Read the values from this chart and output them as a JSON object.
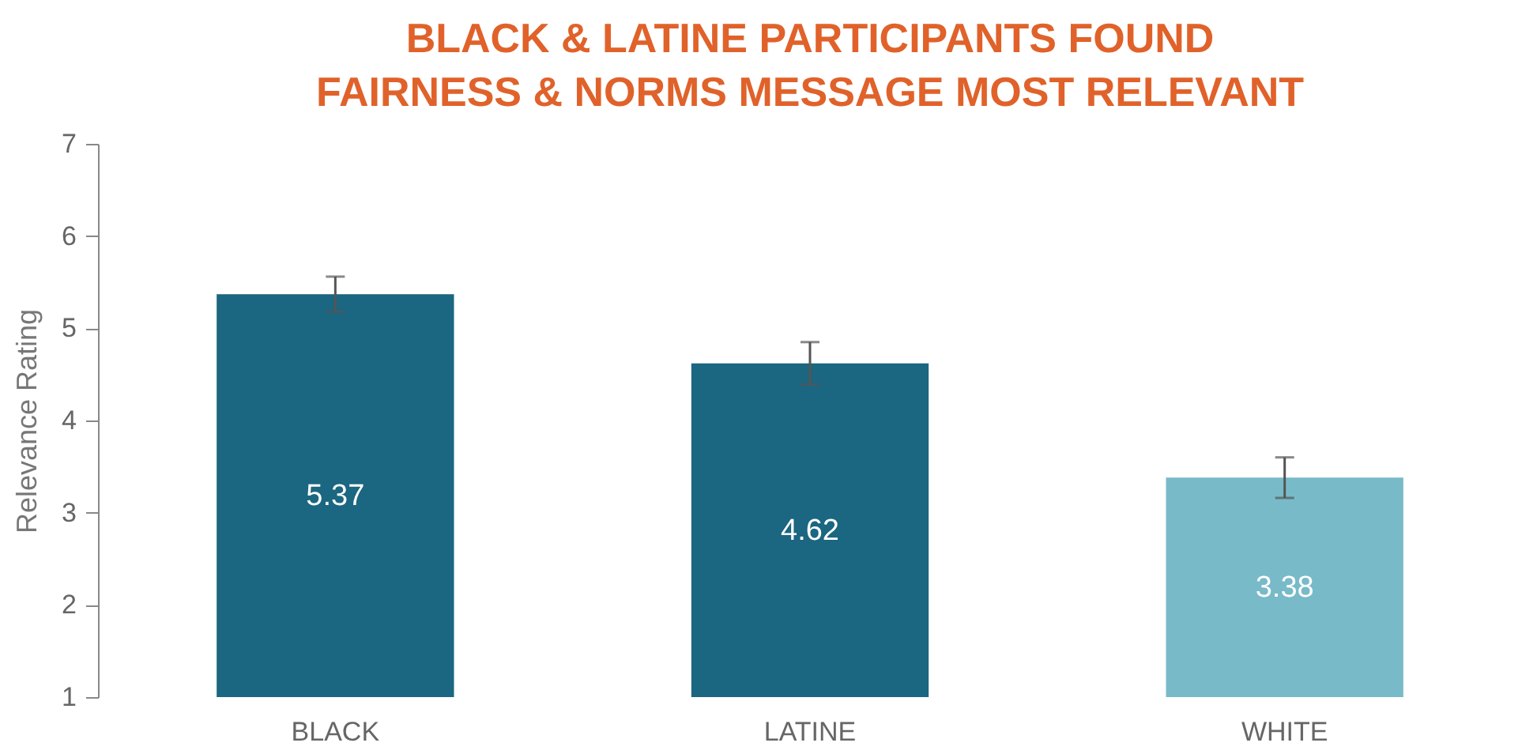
{
  "chart_data": {
    "type": "bar",
    "title": "BLACK & LATINE PARTICIPANTS FOUND FAIRNESS & NORMS MESSAGE MOST RELEVANT",
    "ylabel": "Relevance Rating",
    "categories": [
      "BLACK",
      "LATINE",
      "WHITE"
    ],
    "values": [
      5.37,
      4.62,
      3.38
    ],
    "colors": [
      "#1b6680",
      "#1b6680",
      "#78bac8"
    ],
    "errors": [
      0.19,
      0.23,
      0.22
    ],
    "ylim": [
      1,
      7
    ],
    "yticks": [
      1,
      2,
      3,
      4,
      5,
      6,
      7
    ],
    "grid": false,
    "data_labels": true
  }
}
